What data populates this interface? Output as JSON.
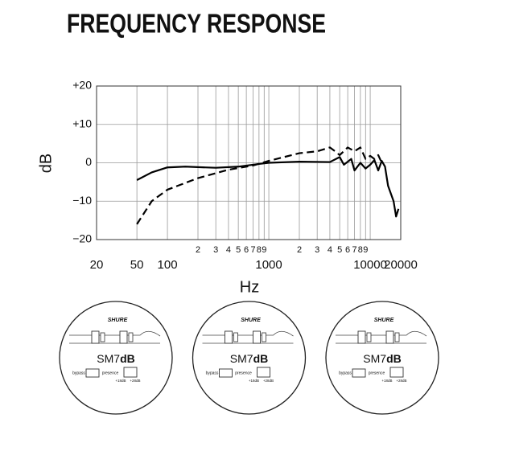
{
  "chart_data": {
    "type": "line",
    "title": "FREQUENCY RESPONSE",
    "y_label": "dB",
    "x_label": "Hz",
    "log_x": true,
    "grid": true,
    "xlim": [
      20,
      20000
    ],
    "ylim": [
      -20,
      20
    ],
    "xticks": [
      20,
      50,
      100,
      {
        "value": 200,
        "label": "2"
      },
      {
        "value": 300,
        "label": "3"
      },
      {
        "value": 400,
        "label": "4"
      },
      {
        "value": 500,
        "label": "5"
      },
      {
        "value": 600,
        "label": "6"
      },
      {
        "value": 700,
        "label": "7"
      },
      {
        "value": 800,
        "label": "8"
      },
      {
        "value": 900,
        "label": "9"
      },
      1000,
      {
        "value": 2000,
        "label": "2"
      },
      {
        "value": 3000,
        "label": "3"
      },
      {
        "value": 4000,
        "label": "4"
      },
      {
        "value": 5000,
        "label": "5"
      },
      {
        "value": 6000,
        "label": "6"
      },
      {
        "value": 7000,
        "label": "7"
      },
      {
        "value": 8000,
        "label": "8"
      },
      {
        "value": 9000,
        "label": "9"
      },
      10000,
      20000
    ],
    "yticks": [
      {
        "value": 20,
        "label": "+20"
      },
      {
        "value": 10,
        "label": "+10"
      },
      0,
      {
        "value": -10,
        "label": "−10"
      },
      {
        "value": -20,
        "label": "−20"
      }
    ],
    "series": [
      {
        "color": "#000000",
        "line_style": "solid",
        "x": [
          50,
          70,
          100,
          150,
          300,
          500,
          800,
          1000,
          2000,
          4000,
          5000,
          5500,
          6500,
          7000,
          8000,
          9000,
          10000,
          11000,
          12000,
          13000,
          14000,
          15000,
          17000,
          18000,
          19000
        ],
        "values": [
          -4.5,
          -2.5,
          -1.2,
          -1,
          -1.3,
          -1,
          -0.3,
          0,
          0.3,
          0.2,
          1.5,
          -0.5,
          1,
          -2,
          0,
          -1.5,
          -0.5,
          0.7,
          -2,
          0.5,
          -1,
          -6,
          -10,
          -14,
          -12
        ]
      },
      {
        "color": "#000000",
        "line_style": "dashed",
        "x": [
          50,
          70,
          100,
          200,
          400,
          700,
          1000,
          2000,
          3000,
          4000,
          4500,
          5000,
          6000,
          7000,
          8000,
          9000,
          10000,
          11000,
          12000,
          13000
        ],
        "values": [
          -16,
          -10,
          -7,
          -4,
          -1.8,
          -0.7,
          0.5,
          2.5,
          3,
          4,
          3,
          2,
          4,
          3,
          4,
          1,
          1.8,
          1,
          2,
          0
        ]
      }
    ]
  },
  "badges": [
    {
      "brand": "SHURE",
      "model": "SM7",
      "model_suffix": "dB",
      "switch_left": "bypass",
      "switch_right": "presence",
      "gain_low": "+18dB",
      "gain_high": "+28dB"
    },
    {
      "brand": "SHURE",
      "model": "SM7",
      "model_suffix": "dB",
      "switch_left": "bypass",
      "switch_right": "presence",
      "gain_low": "+18dB",
      "gain_high": "+28dB"
    },
    {
      "brand": "SHURE",
      "model": "SM7",
      "model_suffix": "dB",
      "switch_left": "bypass",
      "switch_right": "presence",
      "gain_low": "+18dB",
      "gain_high": "+28dB"
    }
  ]
}
